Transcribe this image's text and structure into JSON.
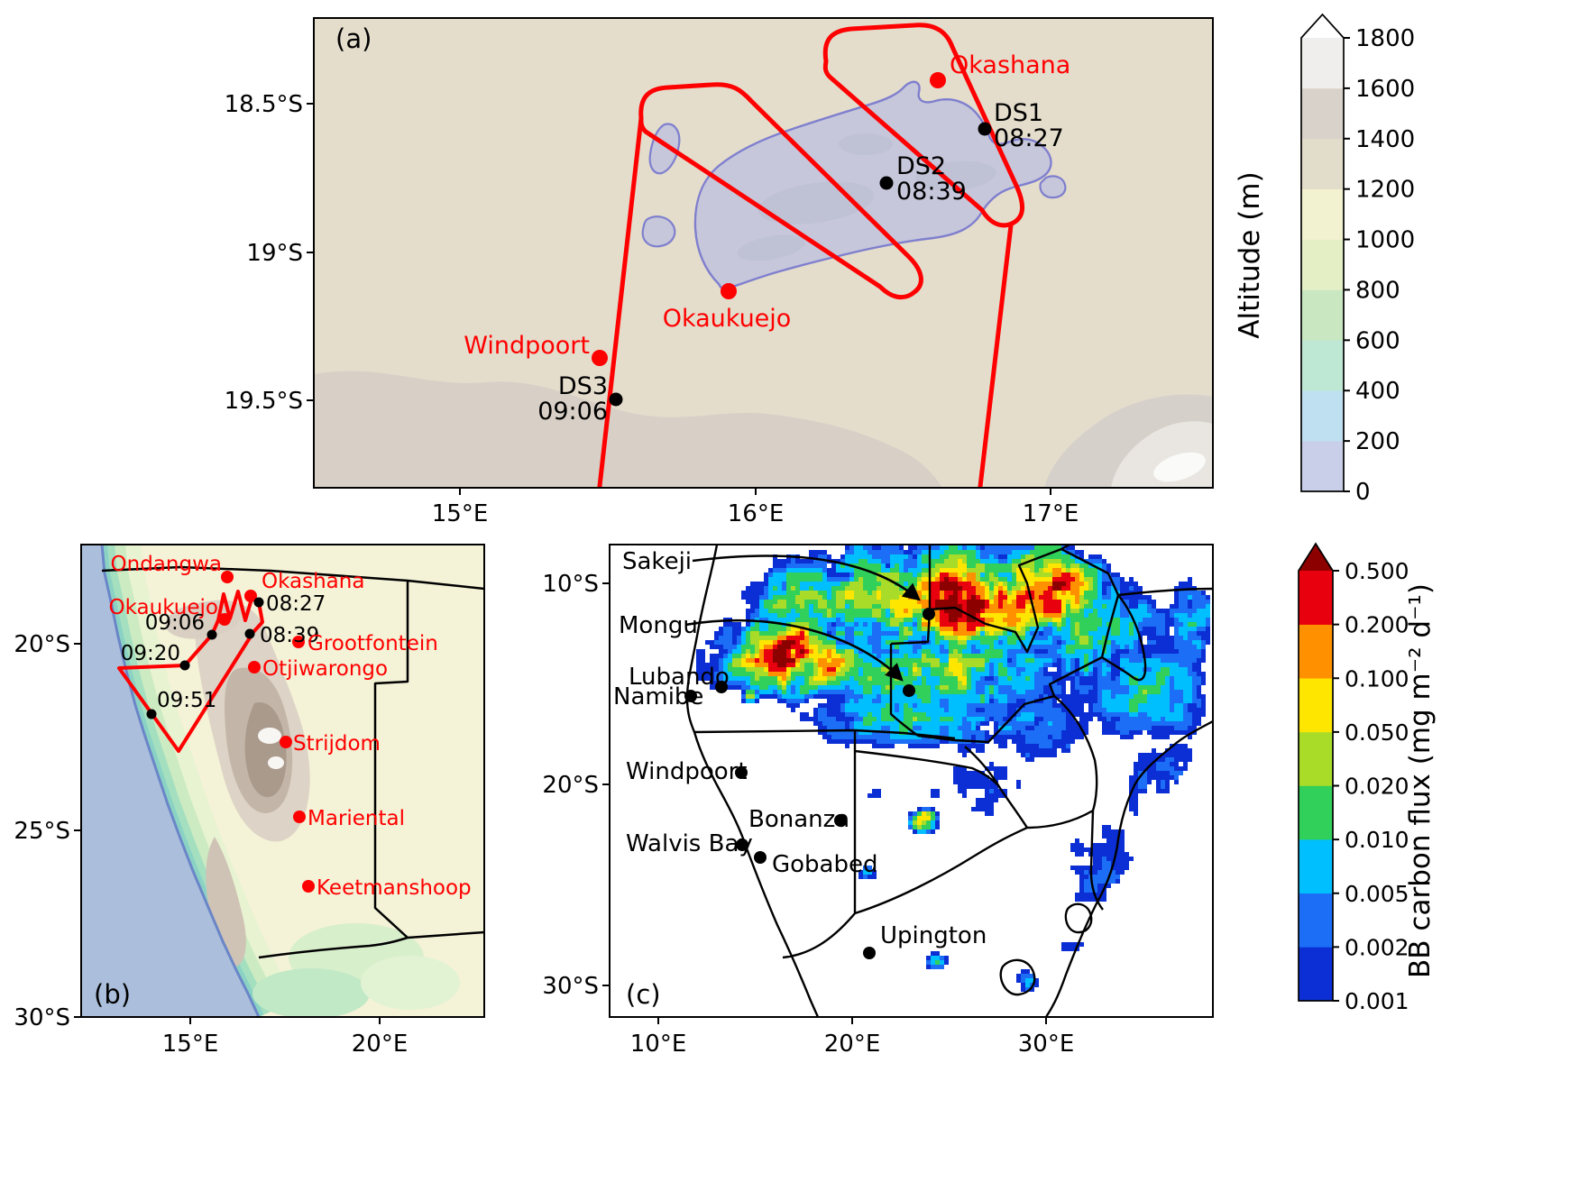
{
  "figure": {
    "track_color": "#ff0000",
    "station_label_color": "#ff0000",
    "map_colors": {
      "pan_fill": "#c6c7db",
      "pan_outline": "#7f7fce",
      "ocean": "#abbfdc",
      "land_a": "#e4ddcc",
      "land_b": "#f4f2d7"
    },
    "panel_a": {
      "tag": "(a)",
      "yticks": [
        "18.5°S",
        "19°S",
        "19.5°S"
      ],
      "xticks": [
        "15°E",
        "16°E",
        "17°E"
      ],
      "labels": {
        "okashana": "Okashana",
        "ds1": "DS1",
        "ds1_time": "08:27",
        "ds2": "DS2",
        "ds2_time": "08:39",
        "okaukuejo": "Okaukuejo",
        "windpoort": "Windpoort",
        "ds3": "DS3",
        "ds3_time": "09:06"
      }
    },
    "panel_b": {
      "tag": "(b)",
      "yticks": [
        "20°S",
        "25°S",
        "30°S"
      ],
      "xticks": [
        "15°E",
        "20°E"
      ],
      "stations": {
        "ondangwa": "Ondangwa",
        "okashana": "Okashana",
        "okaukuejo": "Okaukuejo",
        "grootfontein": "Grootfontein",
        "otjiwarongo": "Otjiwarongo",
        "strijdom": "Strijdom",
        "mariental": "Mariental",
        "keetmanshoop": "Keetmanshoop"
      },
      "times": {
        "t0827": "08:27",
        "t0839": "08:39",
        "t0906": "09:06",
        "t0920": "09:20",
        "t0951": "09:51"
      }
    },
    "panel_c": {
      "tag": "(c)",
      "yticks": [
        "10°S",
        "20°S",
        "30°S"
      ],
      "xticks": [
        "10°E",
        "20°E",
        "30°E"
      ],
      "stations": {
        "sakeji": "Sakeji",
        "mongu": "Mongu",
        "lubando": "Lubando",
        "namibe": "Namibe",
        "windpoort": "Windpoort",
        "bonanza": "Bonanza",
        "walvis_bay": "Walvis Bay",
        "gobabed": "Gobabed",
        "upington": "Upington"
      }
    },
    "colorbar_altitude": {
      "title": "Altitude (m)",
      "tick_labels": [
        "1800",
        "1600",
        "1400",
        "1200",
        "1000",
        "800",
        "600",
        "400",
        "200",
        "0"
      ],
      "colors_bottom_to_top": [
        "#c9cfe8",
        "#bfe0f0",
        "#bfe8d4",
        "#c9e8c2",
        "#e4efc6",
        "#f3f2d0",
        "#e2dcca",
        "#d9d2ca",
        "#f0eeec"
      ],
      "over_color": "#ffffff"
    },
    "colorbar_flux": {
      "title": "BB carbon flux (mg m⁻² d⁻¹)",
      "tick_labels": [
        "0.500",
        "0.200",
        "0.100",
        "0.050",
        "0.020",
        "0.010",
        "0.005",
        "0.002",
        "0.001"
      ],
      "colors_bottom_to_top": [
        "#0b2fd4",
        "#1b6ef5",
        "#00bfff",
        "#30d05a",
        "#a8dc28",
        "#ffe600",
        "#ff9000",
        "#e8000e"
      ],
      "over_color": "#8c0000"
    }
  }
}
